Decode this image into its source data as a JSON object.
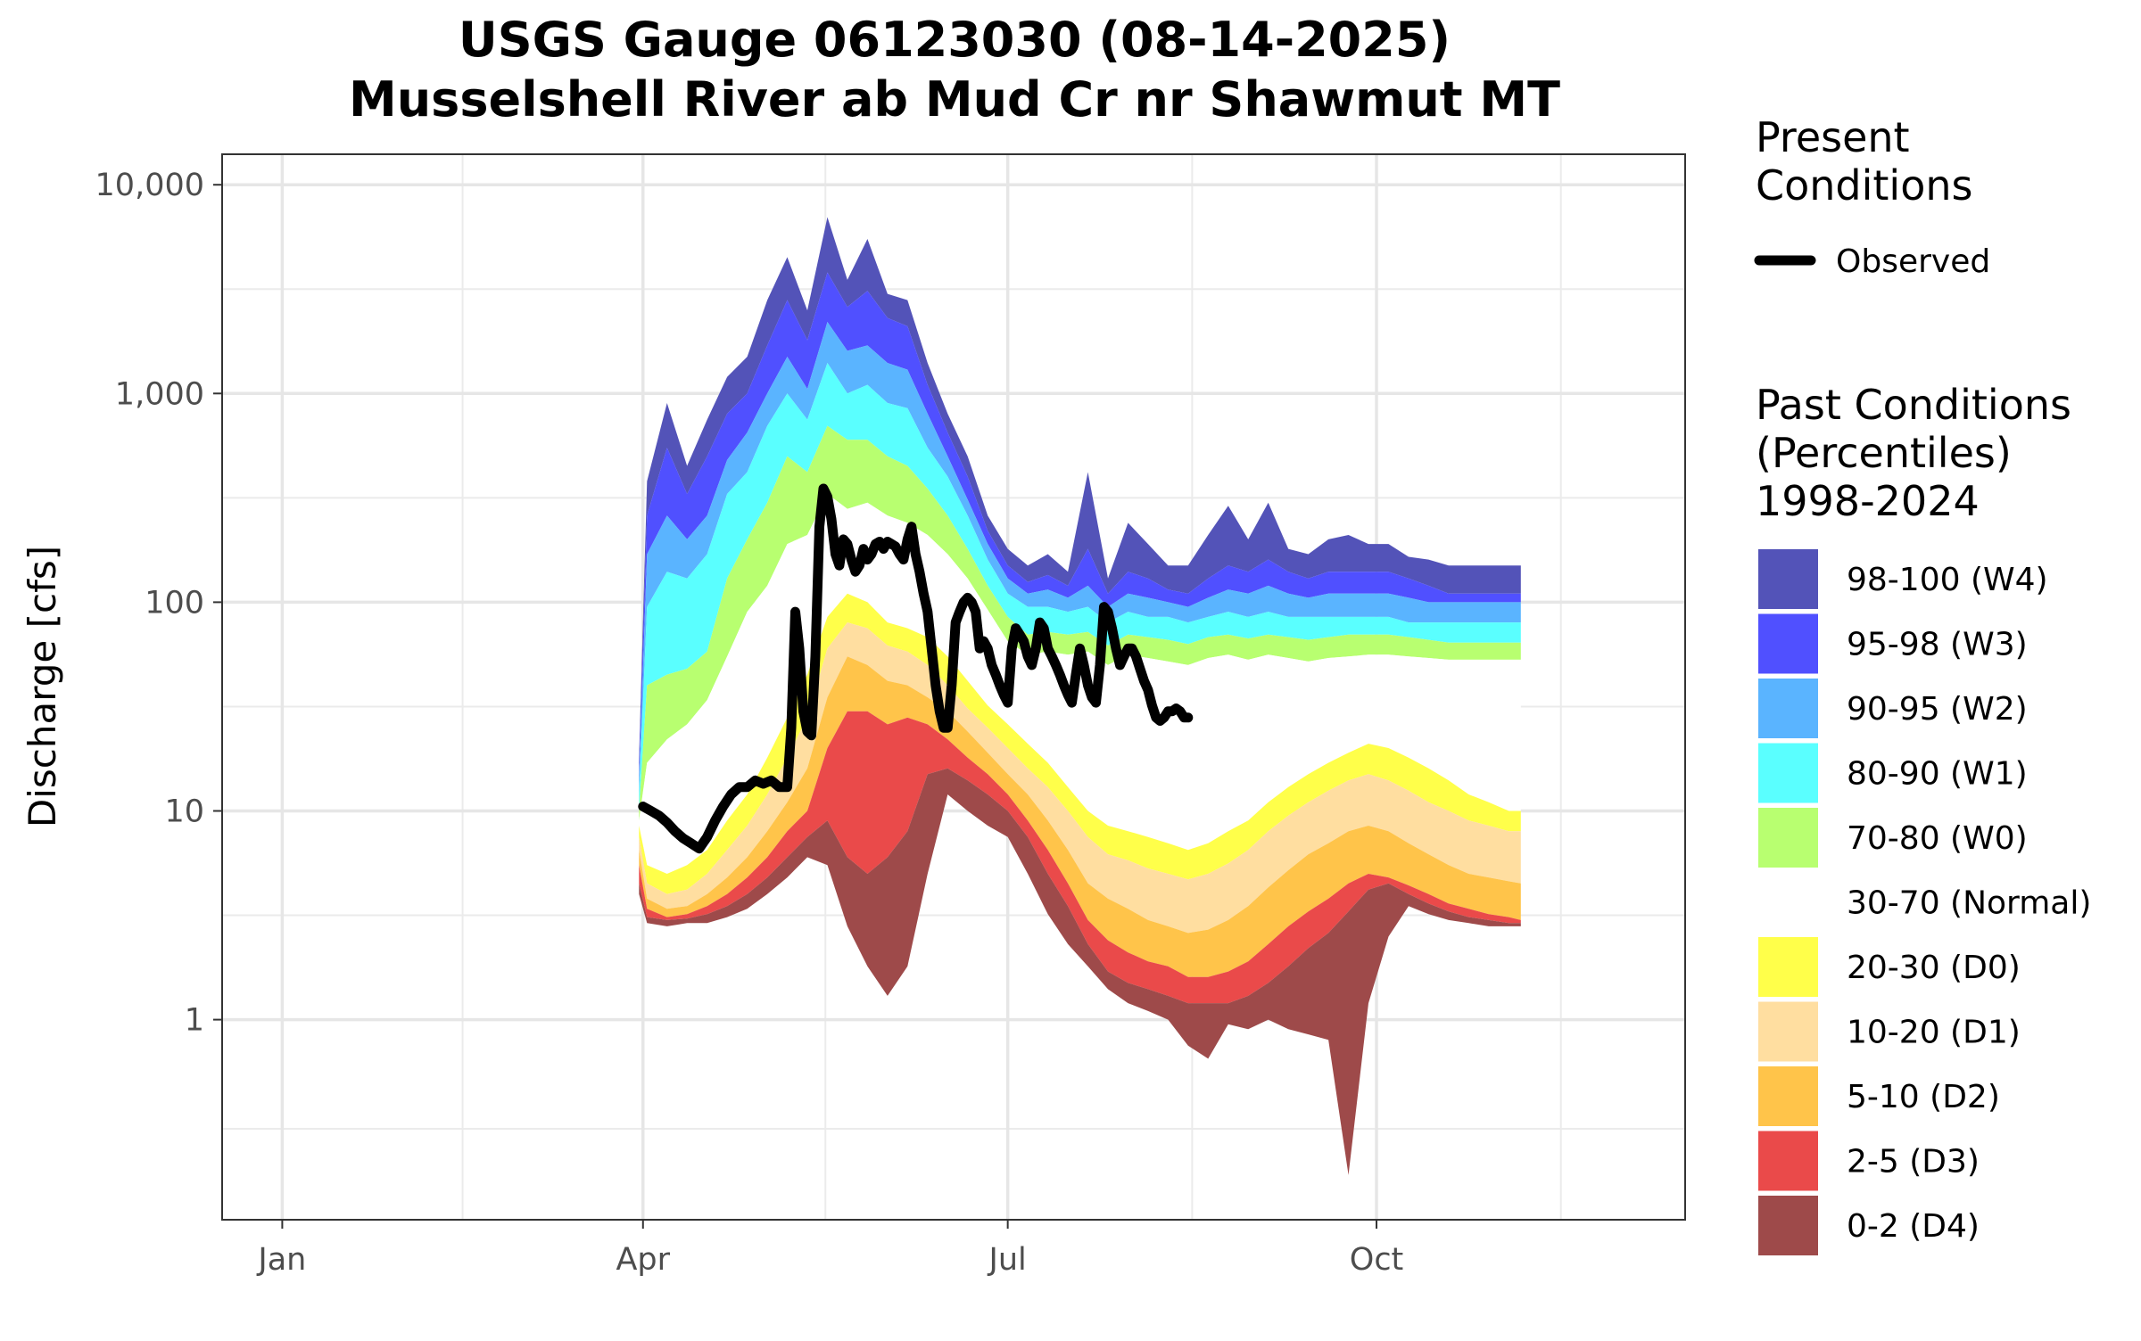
{
  "chart_data": {
    "type": "area",
    "title_line1": "USGS Gauge 06123030 (08-14-2025)",
    "title_line2": "Musselshell River ab Mud Cr nr Shawmut MT",
    "xlabel": "",
    "ylabel": "Discharge [cfs]",
    "y_scale": "log10",
    "ylim": [
      0.11,
      14000
    ],
    "xlim_day_of_year": [
      -15,
      350
    ],
    "y_ticks": [
      {
        "value": 1,
        "label": "1"
      },
      {
        "value": 10,
        "label": "10"
      },
      {
        "value": 100,
        "label": "100"
      },
      {
        "value": 1000,
        "label": "1,000"
      },
      {
        "value": 10000,
        "label": "10,000"
      }
    ],
    "x_ticks": [
      {
        "day": 0,
        "label": "Jan"
      },
      {
        "day": 90,
        "label": "Apr"
      },
      {
        "day": 181,
        "label": "Jul"
      },
      {
        "day": 273,
        "label": "Oct"
      }
    ],
    "grid": true,
    "legend_placement": "right",
    "legend": {
      "present_title_line1": "Present",
      "present_title_line2": "Conditions",
      "observed_label": "Observed",
      "past_title_line1": "Past Conditions",
      "past_title_line2": "(Percentiles)",
      "past_title_line3": "1998-2024"
    },
    "band_classes": [
      {
        "label": "98-100 (W4)",
        "color": "#5353b8"
      },
      {
        "label": "95-98 (W3)",
        "color": "#5050ff"
      },
      {
        "label": "90-95 (W2)",
        "color": "#5ab4ff"
      },
      {
        "label": "80-90 (W1)",
        "color": "#5affff"
      },
      {
        "label": "70-80 (W0)",
        "color": "#b8ff70"
      },
      {
        "label": "30-70 (Normal)",
        "color": "#ffffff"
      },
      {
        "label": "20-30 (D0)",
        "color": "#ffff4a"
      },
      {
        "label": "10-20 (D1)",
        "color": "#ffdea0"
      },
      {
        "label": "5-10 (D2)",
        "color": "#ffc44a"
      },
      {
        "label": "2-5 (D3)",
        "color": "#ea4a4a"
      },
      {
        "label": "0-2 (D4)",
        "color": "#9e4a4a"
      }
    ],
    "percentile_days": [
      89,
      91,
      96,
      101,
      106,
      111,
      116,
      121,
      126,
      131,
      136,
      141,
      146,
      151,
      156,
      161,
      166,
      171,
      176,
      181,
      186,
      191,
      196,
      201,
      206,
      211,
      216,
      221,
      226,
      231,
      236,
      241,
      246,
      251,
      256,
      261,
      266,
      271,
      276,
      281,
      286,
      291,
      296,
      301,
      306,
      309
    ],
    "percentile_boundaries": [
      {
        "name": "max",
        "values": [
          18,
          380,
          900,
          450,
          750,
          1200,
          1500,
          2800,
          4500,
          2500,
          7000,
          3500,
          5500,
          3000,
          2800,
          1400,
          800,
          500,
          260,
          180,
          150,
          170,
          140,
          420,
          130,
          240,
          190,
          150,
          150,
          210,
          290,
          200,
          300,
          180,
          170,
          200,
          210,
          190,
          190,
          165,
          160,
          150,
          150,
          150,
          150,
          150
        ]
      },
      {
        "name": "p98",
        "values": [
          16,
          260,
          550,
          330,
          500,
          800,
          1000,
          1700,
          2800,
          1800,
          3800,
          2600,
          3100,
          2300,
          2100,
          1100,
          650,
          400,
          220,
          150,
          125,
          135,
          120,
          180,
          110,
          140,
          130,
          115,
          110,
          130,
          150,
          140,
          160,
          140,
          130,
          140,
          140,
          140,
          140,
          130,
          120,
          110,
          110,
          110,
          110,
          110
        ]
      },
      {
        "name": "p95",
        "values": [
          14,
          170,
          260,
          200,
          260,
          480,
          650,
          1000,
          1500,
          1050,
          2200,
          1600,
          1700,
          1400,
          1300,
          800,
          500,
          310,
          190,
          130,
          110,
          115,
          105,
          120,
          95,
          110,
          105,
          100,
          95,
          105,
          115,
          110,
          120,
          110,
          105,
          110,
          110,
          110,
          110,
          105,
          100,
          100,
          100,
          100,
          100,
          100
        ]
      },
      {
        "name": "p90",
        "values": [
          12,
          95,
          140,
          130,
          170,
          330,
          420,
          700,
          1000,
          750,
          1400,
          1000,
          1100,
          900,
          850,
          550,
          400,
          260,
          160,
          110,
          95,
          95,
          90,
          95,
          80,
          90,
          85,
          85,
          80,
          85,
          90,
          85,
          90,
          85,
          85,
          85,
          85,
          85,
          85,
          80,
          80,
          80,
          80,
          80,
          80,
          80
        ]
      },
      {
        "name": "p80",
        "values": [
          10,
          40,
          45,
          48,
          58,
          130,
          200,
          300,
          500,
          420,
          700,
          600,
          600,
          500,
          450,
          350,
          260,
          180,
          120,
          85,
          70,
          72,
          70,
          72,
          62,
          70,
          68,
          66,
          63,
          68,
          70,
          67,
          70,
          68,
          66,
          68,
          70,
          70,
          70,
          68,
          66,
          64,
          64,
          64,
          64,
          64
        ]
      },
      {
        "name": "p70",
        "values": [
          9,
          17,
          22,
          26,
          34,
          55,
          90,
          120,
          190,
          210,
          330,
          280,
          300,
          260,
          240,
          210,
          170,
          130,
          92,
          65,
          56,
          58,
          56,
          58,
          50,
          56,
          54,
          52,
          50,
          54,
          56,
          53,
          56,
          54,
          52,
          54,
          55,
          56,
          56,
          55,
          54,
          53,
          53,
          53,
          53,
          53
        ]
      },
      {
        "name": "p30",
        "values": [
          8.5,
          5.5,
          5,
          5.5,
          6.5,
          9,
          12,
          18,
          28,
          45,
          85,
          110,
          100,
          80,
          75,
          68,
          55,
          42,
          32,
          26,
          21,
          17,
          13,
          10,
          8.5,
          8,
          7.5,
          7,
          6.5,
          7,
          8,
          9,
          11,
          13,
          15,
          17,
          19,
          21,
          20,
          18,
          16,
          14,
          12,
          11,
          10,
          10
        ]
      },
      {
        "name": "p20",
        "values": [
          7.5,
          4.5,
          4,
          4.2,
          5,
          6.5,
          8.5,
          12,
          18,
          28,
          60,
          80,
          75,
          62,
          58,
          50,
          40,
          31,
          25,
          20,
          16,
          13,
          10,
          7.5,
          6.2,
          5.8,
          5.3,
          5,
          4.7,
          5,
          5.6,
          6.5,
          8,
          9.5,
          11,
          12.5,
          14,
          15,
          14,
          12.5,
          11,
          10,
          9,
          8.5,
          8,
          8
        ]
      },
      {
        "name": "p10",
        "values": [
          6.5,
          3.8,
          3.4,
          3.5,
          4,
          4.8,
          6,
          8,
          11,
          16,
          35,
          55,
          50,
          42,
          40,
          35,
          30,
          24,
          19,
          15,
          12,
          9,
          6.5,
          4.5,
          3.8,
          3.4,
          3,
          2.8,
          2.6,
          2.7,
          3,
          3.5,
          4.3,
          5.2,
          6.2,
          7,
          8,
          8.5,
          8,
          7,
          6.2,
          5.5,
          5,
          4.8,
          4.6,
          4.5
        ]
      },
      {
        "name": "p5",
        "values": [
          5.5,
          3.4,
          3.1,
          3.2,
          3.5,
          4,
          4.8,
          6,
          8,
          10,
          20,
          30,
          30,
          26,
          28,
          26,
          22,
          18,
          15,
          12,
          9,
          6.5,
          4.5,
          3,
          2.4,
          2.1,
          1.9,
          1.8,
          1.6,
          1.6,
          1.7,
          1.9,
          2.3,
          2.8,
          3.3,
          3.8,
          4.5,
          5,
          4.8,
          4.4,
          4,
          3.6,
          3.4,
          3.2,
          3.1,
          3
        ]
      },
      {
        "name": "p2",
        "values": [
          4.5,
          3.1,
          3,
          3.05,
          3.2,
          3.5,
          4,
          4.8,
          6,
          7.5,
          9,
          6,
          5,
          6,
          8,
          15,
          16,
          14,
          12,
          10,
          7.5,
          5,
          3.5,
          2.3,
          1.7,
          1.5,
          1.4,
          1.3,
          1.2,
          1.2,
          1.2,
          1.3,
          1.5,
          1.8,
          2.2,
          2.6,
          3.3,
          4.2,
          4.5,
          4,
          3.6,
          3.3,
          3.1,
          3,
          2.9,
          2.9
        ]
      },
      {
        "name": "min",
        "values": [
          4,
          2.9,
          2.8,
          2.9,
          2.9,
          3.1,
          3.4,
          4,
          4.8,
          6,
          5.5,
          2.8,
          1.8,
          1.3,
          1.8,
          5,
          12,
          10,
          8.5,
          7.5,
          5,
          3.2,
          2.3,
          1.8,
          1.4,
          1.2,
          1.1,
          1.0,
          0.75,
          0.65,
          0.95,
          0.9,
          1,
          0.9,
          0.85,
          0.8,
          0.18,
          1.2,
          2.5,
          3.5,
          3.2,
          3,
          2.9,
          2.8,
          2.8,
          2.8
        ]
      }
    ],
    "series": [
      {
        "name": "Observed",
        "color": "#000000",
        "days": [
          90,
          92,
          94,
          96,
          98,
          100,
          102,
          104,
          106,
          108,
          110,
          112,
          114,
          116,
          118,
          120,
          122,
          124,
          126,
          127,
          128,
          129,
          130,
          131,
          132,
          133,
          134,
          135,
          136,
          137,
          138,
          139,
          140,
          141,
          142,
          143,
          144,
          145,
          146,
          147,
          148,
          149,
          150,
          151,
          152,
          153,
          154,
          155,
          156,
          157,
          158,
          159,
          160,
          161,
          162,
          163,
          164,
          165,
          166,
          167,
          168,
          169,
          170,
          171,
          172,
          173,
          174,
          175,
          176,
          177,
          178,
          179,
          180,
          181,
          182,
          183,
          184,
          185,
          186,
          187,
          188,
          189,
          190,
          191,
          192,
          193,
          194,
          195,
          196,
          197,
          198,
          199,
          200,
          201,
          202,
          203,
          204,
          205,
          206,
          207,
          208,
          209,
          210,
          211,
          212,
          213,
          214,
          215,
          216,
          217,
          218,
          219,
          220,
          221,
          222,
          223,
          224,
          225,
          226
        ],
        "values": [
          10.5,
          10,
          9.5,
          8.8,
          8,
          7.4,
          7,
          6.6,
          7.5,
          9,
          10.5,
          12,
          13,
          13,
          14,
          13.5,
          14,
          13,
          13,
          25,
          90,
          60,
          30,
          24,
          23,
          55,
          230,
          350,
          320,
          250,
          170,
          150,
          200,
          190,
          160,
          140,
          150,
          180,
          160,
          170,
          190,
          195,
          180,
          195,
          190,
          185,
          170,
          160,
          200,
          230,
          170,
          140,
          110,
          90,
          60,
          40,
          30,
          25,
          25,
          40,
          80,
          90,
          100,
          105,
          100,
          90,
          60,
          65,
          60,
          50,
          45,
          40,
          36,
          33,
          60,
          75,
          70,
          65,
          55,
          50,
          60,
          80,
          75,
          60,
          55,
          50,
          45,
          40,
          36,
          33,
          45,
          60,
          50,
          40,
          35,
          33,
          50,
          95,
          90,
          75,
          60,
          50,
          55,
          60,
          60,
          55,
          48,
          42,
          38,
          32,
          28,
          27,
          28,
          30,
          30,
          31,
          30,
          28,
          28
        ]
      }
    ]
  }
}
